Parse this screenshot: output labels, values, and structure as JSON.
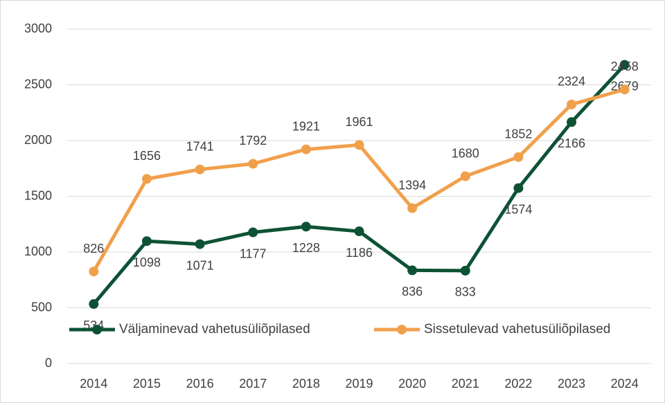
{
  "chart_data": {
    "type": "line",
    "categories": [
      "2014",
      "2015",
      "2016",
      "2017",
      "2018",
      "2019",
      "2020",
      "2021",
      "2022",
      "2023",
      "2024"
    ],
    "series": [
      {
        "name": "Väljaminevad vahetusüliõpilased",
        "color": "#0e5235",
        "values": [
          534,
          1098,
          1071,
          1177,
          1228,
          1186,
          836,
          833,
          1574,
          2166,
          2679
        ]
      },
      {
        "name": "Sissetulevad vahetusüliõpilased",
        "color": "#f0a04b",
        "values": [
          826,
          1656,
          1741,
          1792,
          1921,
          1961,
          1394,
          1680,
          1852,
          2324,
          2458
        ]
      }
    ],
    "ylim": [
      0,
      3000
    ],
    "yticks": [
      0,
      500,
      1000,
      1500,
      2000,
      2500,
      3000
    ],
    "grid": true
  }
}
